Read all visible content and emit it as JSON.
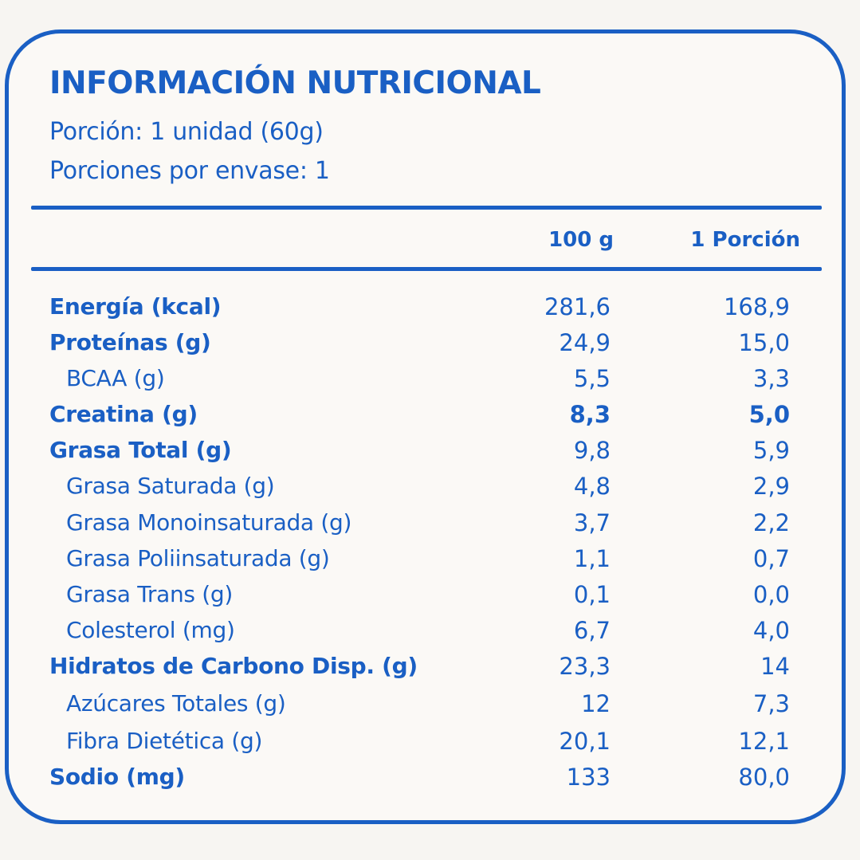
{
  "header": {
    "title": "INFORMACIÓN NUTRICIONAL",
    "serving": "Porción: 1 unidad (60g)",
    "servings_per_container": "Porciones por envase: 1"
  },
  "columns": {
    "per_100g": "100 g",
    "per_serving": "1 Porción"
  },
  "rows": [
    {
      "label": "Energía (kcal)",
      "v100": "281,6",
      "vserv": "168,9"
    },
    {
      "label": "Proteínas (g)",
      "v100": "24,9",
      "vserv": "15,0"
    },
    {
      "label": "BCAA (g)",
      "v100": "5,5",
      "vserv": "3,3"
    },
    {
      "label": "Creatina (g)",
      "v100": "8,3",
      "vserv": "5,0"
    },
    {
      "label": "Grasa Total (g)",
      "v100": "9,8",
      "vserv": "5,9"
    },
    {
      "label": "Grasa Saturada (g)",
      "v100": "4,8",
      "vserv": "2,9"
    },
    {
      "label": "Grasa Monoinsaturada (g)",
      "v100": "3,7",
      "vserv": "2,2"
    },
    {
      "label": "Grasa Poliinsaturada (g)",
      "v100": "1,1",
      "vserv": "0,7"
    },
    {
      "label": "Grasa Trans (g)",
      "v100": "0,1",
      "vserv": "0,0"
    },
    {
      "label": "Colesterol (mg)",
      "v100": "6,7",
      "vserv": "4,0"
    },
    {
      "label": "Hidratos de Carbono Disp. (g)",
      "v100": "23,3",
      "vserv": "14"
    },
    {
      "label": "Azúcares Totales (g)",
      "v100": "12",
      "vserv": "7,3"
    },
    {
      "label": "Fibra Dietética (g)",
      "v100": "20,1",
      "vserv": "12,1"
    },
    {
      "label": "Sodio (mg)",
      "v100": "133",
      "vserv": "80,0"
    }
  ],
  "colors": {
    "accent": "#1a5fc4",
    "background": "#fbf9f6"
  }
}
